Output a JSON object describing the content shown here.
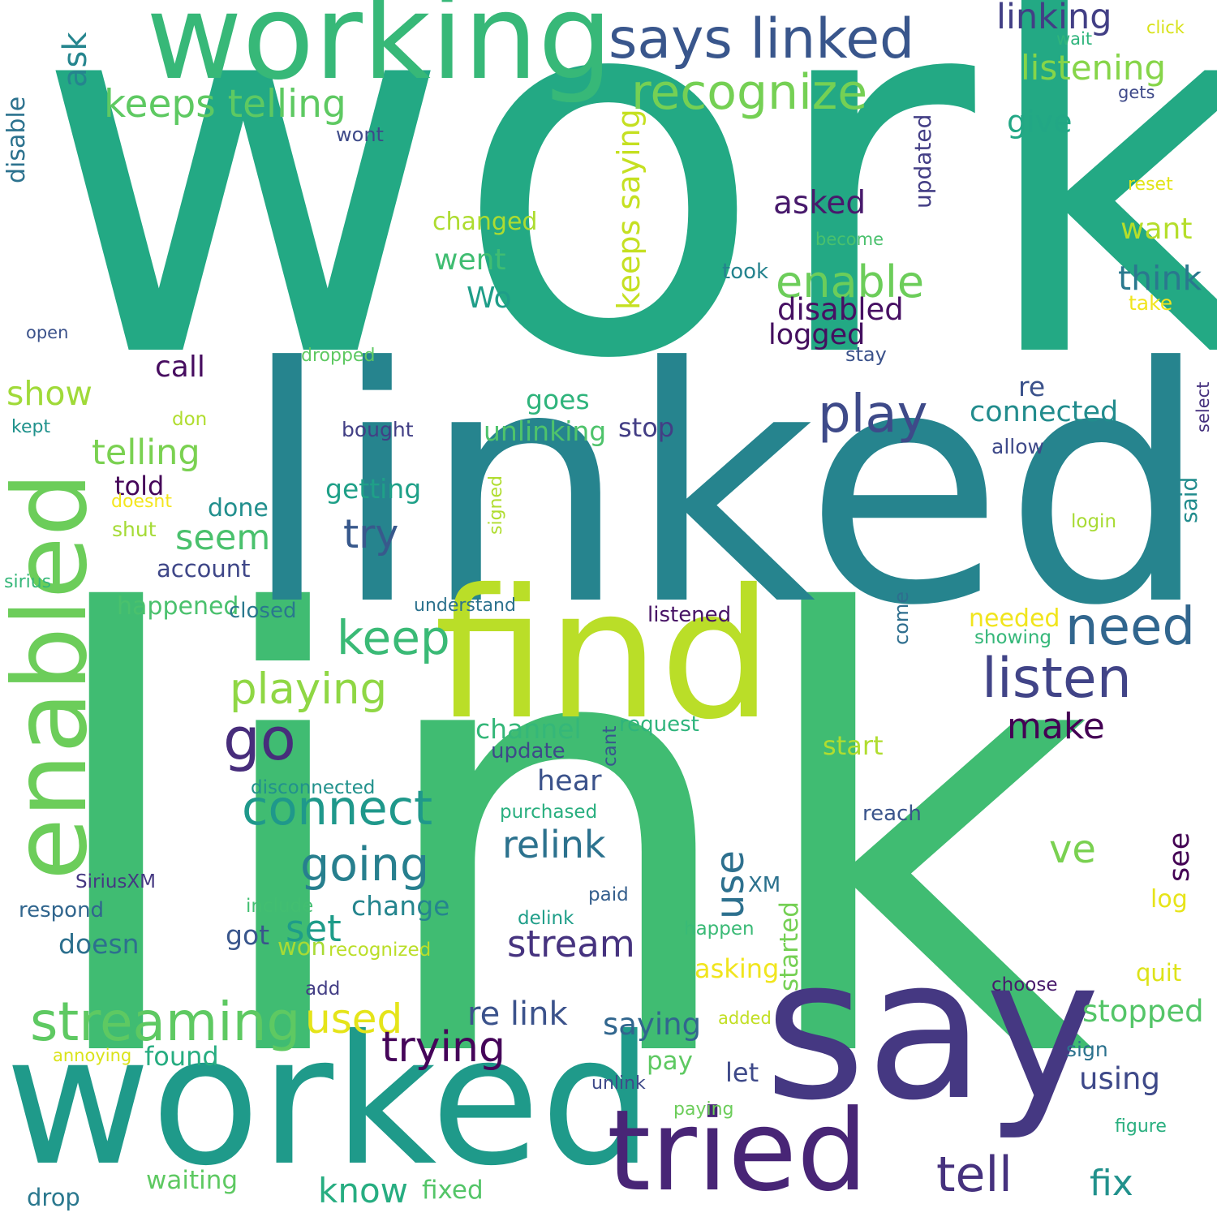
{
  "words": [
    {
      "text": "work",
      "color": "#23a984"
    },
    {
      "text": "link",
      "color": "#40bc72"
    },
    {
      "text": "linked",
      "color": "#26848e"
    },
    {
      "text": "find",
      "color": "#bade28"
    },
    {
      "text": "say",
      "color": "#453882"
    },
    {
      "text": "worked",
      "color": "#1f9a8a"
    },
    {
      "text": "working",
      "color": "#37b878"
    },
    {
      "text": "enabled",
      "color": "#6ccd5a"
    },
    {
      "text": "tried",
      "color": "#482576"
    },
    {
      "text": "says linked",
      "color": "#39568c"
    },
    {
      "text": "recognize",
      "color": "#75d054"
    },
    {
      "text": "keeps telling",
      "color": "#5ec962"
    },
    {
      "text": "linking",
      "color": "#423f85"
    },
    {
      "text": "listening",
      "color": "#86d549"
    },
    {
      "text": "ask",
      "color": "#25858e"
    },
    {
      "text": "disable",
      "color": "#2c728e"
    },
    {
      "text": "enable",
      "color": "#6ccd5a"
    },
    {
      "text": "think",
      "color": "#2a788e"
    },
    {
      "text": "disabled",
      "color": "#471063"
    },
    {
      "text": "logged",
      "color": "#440f5f"
    },
    {
      "text": "asked",
      "color": "#481a6c"
    },
    {
      "text": "give",
      "color": "#22a785"
    },
    {
      "text": "want",
      "color": "#b5de2b"
    },
    {
      "text": "changed",
      "color": "#addc30"
    },
    {
      "text": "went",
      "color": "#40bd72"
    },
    {
      "text": "Wo",
      "color": "#1f9e89"
    },
    {
      "text": "keeps saying",
      "color": "#c5e021"
    },
    {
      "text": "updated",
      "color": "#433e85"
    },
    {
      "text": "play",
      "color": "#3e4a89"
    },
    {
      "text": "need",
      "color": "#31668e"
    },
    {
      "text": "listen",
      "color": "#414487"
    },
    {
      "text": "connected",
      "color": "#228c8d"
    },
    {
      "text": "go",
      "color": "#472d7b"
    },
    {
      "text": "keep",
      "color": "#3aba76"
    },
    {
      "text": "playing",
      "color": "#8fd744"
    },
    {
      "text": "connect",
      "color": "#1f988b"
    },
    {
      "text": "going",
      "color": "#277f8e"
    },
    {
      "text": "relink",
      "color": "#2c728e"
    },
    {
      "text": "streaming",
      "color": "#5ec962"
    },
    {
      "text": "used",
      "color": "#e5e419"
    },
    {
      "text": "trying",
      "color": "#450559"
    },
    {
      "text": "re link",
      "color": "#3b528b"
    },
    {
      "text": "tell",
      "color": "#46327e"
    },
    {
      "text": "fix",
      "color": "#21918c"
    },
    {
      "text": "know",
      "color": "#27ad81"
    },
    {
      "text": "stream",
      "color": "#46337f"
    },
    {
      "text": "use",
      "color": "#2d708e"
    },
    {
      "text": "make",
      "color": "#440154"
    },
    {
      "text": "telling",
      "color": "#7ad151"
    },
    {
      "text": "show",
      "color": "#a0da39"
    },
    {
      "text": "seem",
      "color": "#4ac16d"
    },
    {
      "text": "try",
      "color": "#38598c"
    },
    {
      "text": "set",
      "color": "#1e9c89"
    },
    {
      "text": "stopped",
      "color": "#54c568"
    },
    {
      "text": "saying",
      "color": "#31668e"
    },
    {
      "text": "using",
      "color": "#3e4989"
    },
    {
      "text": "ve",
      "color": "#7ad151"
    },
    {
      "text": "see",
      "color": "#440154"
    },
    {
      "text": "call",
      "color": "#470d60"
    },
    {
      "text": "told",
      "color": "#450559"
    },
    {
      "text": "done",
      "color": "#218f8d"
    },
    {
      "text": "goes",
      "color": "#2fb47c"
    },
    {
      "text": "getting",
      "color": "#1fa088"
    },
    {
      "text": "unlinking",
      "color": "#4ec36b"
    },
    {
      "text": "stop",
      "color": "#433e85"
    },
    {
      "text": "re",
      "color": "#3b528b"
    },
    {
      "text": "channel",
      "color": "#35b779"
    },
    {
      "text": "hear",
      "color": "#3b528b"
    },
    {
      "text": "start",
      "color": "#b0dd2f"
    },
    {
      "text": "change",
      "color": "#25858e"
    },
    {
      "text": "happened",
      "color": "#4ac16d"
    },
    {
      "text": "account",
      "color": "#3f4788"
    },
    {
      "text": "doesn",
      "color": "#2d708e"
    },
    {
      "text": "got",
      "color": "#39568c"
    },
    {
      "text": "won",
      "color": "#a8db34"
    },
    {
      "text": "asking",
      "color": "#f1e51d"
    },
    {
      "text": "started",
      "color": "#75d054"
    },
    {
      "text": "log",
      "color": "#e7e419"
    },
    {
      "text": "quit",
      "color": "#dde318"
    },
    {
      "text": "pay",
      "color": "#5ec962"
    },
    {
      "text": "let",
      "color": "#3e4989"
    },
    {
      "text": "found",
      "color": "#27ad81"
    },
    {
      "text": "waiting",
      "color": "#5ec962"
    },
    {
      "text": "drop",
      "color": "#2a788e"
    },
    {
      "text": "fixed",
      "color": "#54c568"
    },
    {
      "text": "needed",
      "color": "#f1e51d"
    },
    {
      "text": "showing",
      "color": "#35b779"
    },
    {
      "text": "said",
      "color": "#228c8d"
    },
    {
      "text": "select",
      "color": "#46327e"
    },
    {
      "text": "allow",
      "color": "#3e4989"
    },
    {
      "text": "come",
      "color": "#2e6e8e"
    },
    {
      "text": "listened",
      "color": "#471365"
    },
    {
      "text": "request",
      "color": "#2fb47c"
    },
    {
      "text": "cant",
      "color": "#38588c"
    },
    {
      "text": "update",
      "color": "#3e4a89"
    },
    {
      "text": "reach",
      "color": "#3a548c"
    },
    {
      "text": "purchased",
      "color": "#29af7f"
    },
    {
      "text": "disconnected",
      "color": "#21918c"
    },
    {
      "text": "SiriusXM",
      "color": "#453882"
    },
    {
      "text": "respond",
      "color": "#31668e"
    },
    {
      "text": "include",
      "color": "#42be71"
    },
    {
      "text": "recognized",
      "color": "#bade28"
    },
    {
      "text": "delink",
      "color": "#1f9e89"
    },
    {
      "text": "paid",
      "color": "#355f8d"
    },
    {
      "text": "XM",
      "color": "#2c728e"
    },
    {
      "text": "happen",
      "color": "#3aba76"
    },
    {
      "text": "add",
      "color": "#433e85"
    },
    {
      "text": "added",
      "color": "#c2df23"
    },
    {
      "text": "choose",
      "color": "#481a6c"
    },
    {
      "text": "sign",
      "color": "#2c728e"
    },
    {
      "text": "annoying",
      "color": "#dae319"
    },
    {
      "text": "unlink",
      "color": "#3e4a89"
    },
    {
      "text": "paying",
      "color": "#6ccd5a"
    },
    {
      "text": "figure",
      "color": "#29af7f"
    },
    {
      "text": "closed",
      "color": "#2a788e"
    },
    {
      "text": "understand",
      "color": "#2c728e"
    },
    {
      "text": "sirius",
      "color": "#35b779"
    },
    {
      "text": "shut",
      "color": "#a5db36"
    },
    {
      "text": "doesnt",
      "color": "#f4e61e"
    },
    {
      "text": "signed",
      "color": "#b0dd2f"
    },
    {
      "text": "login",
      "color": "#a8db34"
    },
    {
      "text": "bought",
      "color": "#423f85"
    },
    {
      "text": "don",
      "color": "#b0dd2f"
    },
    {
      "text": "kept",
      "color": "#20928c"
    },
    {
      "text": "dropped",
      "color": "#5ec962"
    },
    {
      "text": "stay",
      "color": "#3b528b"
    },
    {
      "text": "open",
      "color": "#3b528b"
    },
    {
      "text": "took",
      "color": "#25838e"
    },
    {
      "text": "take",
      "color": "#f1e51d"
    },
    {
      "text": "become",
      "color": "#4ac16d"
    },
    {
      "text": "reset",
      "color": "#e2e418"
    },
    {
      "text": "wont",
      "color": "#3e4a89"
    },
    {
      "text": "gets",
      "color": "#3e4989"
    },
    {
      "text": "wait",
      "color": "#2fb47c"
    },
    {
      "text": "click",
      "color": "#d8e219"
    }
  ]
}
